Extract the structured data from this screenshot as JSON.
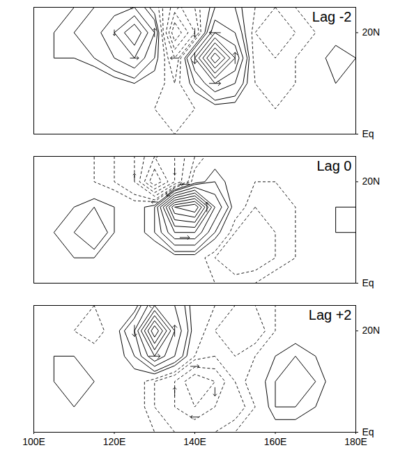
{
  "chart_data": [
    {
      "type": "contour",
      "title": "Lag -2",
      "x": [
        100,
        105,
        110,
        115,
        120,
        125,
        130,
        135,
        140,
        145,
        150,
        155,
        160,
        165,
        170,
        175,
        180
      ],
      "y": [
        0,
        5,
        10,
        15,
        20,
        25
      ],
      "values": [
        [
          0,
          0,
          0,
          0,
          0,
          0,
          0,
          -0.5,
          -0.5,
          0,
          0,
          0,
          0,
          0,
          0,
          0,
          0
        ],
        [
          0,
          0,
          -0.5,
          -0.5,
          -0.5,
          0,
          -0.5,
          -1,
          -0.5,
          0,
          0,
          -0.5,
          -0.5,
          -0.5,
          -0.5,
          0,
          0
        ],
        [
          0,
          0,
          -0.5,
          -0.5,
          0,
          0.5,
          0,
          -1,
          1,
          3,
          2,
          -0.5,
          -1,
          -0.5,
          0,
          0.5,
          0
        ],
        [
          0,
          0.5,
          0.5,
          1,
          2,
          3,
          1,
          -2,
          3,
          8,
          4,
          -1,
          -1,
          -0.5,
          0,
          1,
          0.5
        ],
        [
          0,
          0.5,
          1,
          1.5,
          3,
          5,
          2,
          -5,
          -2,
          3,
          2,
          -1,
          -1.5,
          -1,
          -0.5,
          0,
          0
        ],
        [
          0,
          0,
          0.5,
          1,
          1.5,
          2,
          0,
          -2.5,
          -1,
          1,
          1,
          -0.5,
          -1,
          -0.5,
          0,
          0,
          0
        ]
      ],
      "contour_levels": [
        -6,
        -5,
        -4,
        -3,
        -2,
        -1,
        -0.5,
        0.5,
        1,
        2,
        3,
        4,
        5,
        6,
        7,
        8,
        9,
        10
      ],
      "winds": [
        [
          145,
          10,
          2,
          0
        ],
        [
          150,
          15,
          0,
          2
        ],
        [
          145,
          20,
          -2,
          0
        ],
        [
          140,
          15,
          0,
          -2
        ],
        [
          135,
          25,
          1.5,
          0
        ],
        [
          140,
          20,
          0,
          -1.5
        ],
        [
          135,
          15,
          -1.5,
          0
        ],
        [
          130,
          20,
          0,
          1.5
        ],
        [
          125,
          15,
          1.5,
          0
        ],
        [
          125,
          25,
          -1.5,
          0
        ],
        [
          120,
          20,
          0,
          -1
        ]
      ],
      "xlim": [
        100,
        180
      ],
      "xticks": [
        {
          "value": 100,
          "label": "100E"
        },
        {
          "value": 120,
          "label": "120E"
        },
        {
          "value": 140,
          "label": "140E"
        },
        {
          "value": 160,
          "label": "160E"
        },
        {
          "value": 180,
          "label": "180E"
        }
      ],
      "ylim": [
        0,
        25
      ],
      "yticks": [
        {
          "value": 0,
          "label": "Eq"
        },
        {
          "value": 20,
          "label": "20N"
        }
      ],
      "tick_labels": "y"
    },
    {
      "type": "contour",
      "title": "Lag 0",
      "x": [
        100,
        105,
        110,
        115,
        120,
        125,
        130,
        135,
        140,
        145,
        150,
        155,
        160,
        165,
        170,
        175,
        180
      ],
      "y": [
        0,
        5,
        10,
        15,
        20,
        25
      ],
      "values": [
        [
          0,
          0,
          0,
          0,
          0,
          0,
          0,
          0,
          0,
          -0.5,
          -0.5,
          -0.5,
          0,
          0,
          0,
          0,
          0
        ],
        [
          0,
          0,
          0.5,
          0.5,
          0,
          0,
          -0.5,
          0,
          0,
          -1,
          -2,
          -1.5,
          -1,
          -0.5,
          0,
          0,
          0
        ],
        [
          0,
          0.5,
          1,
          2,
          0.5,
          0,
          1,
          4,
          4,
          1,
          -1,
          -1.5,
          -1,
          -0.5,
          0,
          0.5,
          0.5
        ],
        [
          0,
          0,
          0.5,
          1,
          0.5,
          0,
          1,
          8,
          9,
          3,
          0,
          -1,
          -1,
          -0.5,
          0,
          0.5,
          0.5
        ],
        [
          0,
          0,
          0,
          -0.5,
          -1,
          -2,
          -6,
          -3,
          0,
          1,
          0,
          -0.5,
          -0.5,
          -0.5,
          0,
          0,
          0
        ],
        [
          0,
          0,
          -0.5,
          -0.5,
          -1,
          -2,
          -4,
          -3,
          -1,
          0,
          0,
          0,
          -0.5,
          -0.5,
          0,
          0,
          0
        ]
      ],
      "contour_levels": [
        -6,
        -5,
        -4,
        -3,
        -2,
        -1,
        -0.5,
        0.5,
        1,
        2,
        3,
        4,
        5,
        6,
        7,
        8,
        9,
        10
      ],
      "winds": [
        [
          137.5,
          9,
          3,
          0
        ],
        [
          143,
          15,
          0,
          3
        ],
        [
          137.5,
          19.5,
          -3,
          0
        ],
        [
          134,
          18,
          -2.5,
          -2.5
        ],
        [
          130,
          16,
          -2,
          0
        ],
        [
          125,
          21,
          0,
          2
        ],
        [
          135,
          22,
          0,
          -2
        ],
        [
          130,
          25,
          2,
          0
        ]
      ],
      "xlim": [
        100,
        180
      ],
      "xticks": [
        {
          "value": 100,
          "label": "100E"
        },
        {
          "value": 120,
          "label": "120E"
        },
        {
          "value": 140,
          "label": "140E"
        },
        {
          "value": 160,
          "label": "160E"
        },
        {
          "value": 180,
          "label": "180E"
        }
      ],
      "ylim": [
        0,
        25
      ],
      "yticks": [
        {
          "value": 0,
          "label": "Eq"
        },
        {
          "value": 20,
          "label": "20N"
        }
      ],
      "tick_labels": "y"
    },
    {
      "type": "contour",
      "title": "Lag +2",
      "x": [
        100,
        105,
        110,
        115,
        120,
        125,
        130,
        135,
        140,
        145,
        150,
        155,
        160,
        165,
        170,
        175,
        180
      ],
      "y": [
        0,
        5,
        10,
        15,
        20,
        25
      ],
      "values": [
        [
          0,
          0,
          0,
          0,
          0,
          0,
          -0.5,
          -1,
          -1,
          -1,
          -0.5,
          0,
          0,
          0,
          0,
          0,
          0
        ],
        [
          0,
          0,
          0.5,
          0,
          0,
          0,
          -1,
          -2,
          -3,
          -2,
          -1.5,
          -0.5,
          1,
          1,
          0.5,
          0,
          0
        ],
        [
          0,
          0.5,
          1,
          0.5,
          0,
          0,
          -1,
          -2,
          -4,
          -3,
          -1,
          0,
          1,
          1.5,
          1,
          0,
          0
        ],
        [
          0,
          0.5,
          0.5,
          0,
          0,
          1,
          4,
          2,
          -0.5,
          -1,
          -1,
          -0.5,
          0.5,
          1,
          0.5,
          0,
          0
        ],
        [
          0,
          0,
          -0.5,
          -1,
          0,
          2,
          8,
          3,
          0,
          -1,
          -2,
          -1.5,
          -0.5,
          0,
          0,
          0,
          0
        ],
        [
          0,
          0,
          0,
          -0.5,
          -0.5,
          0,
          3,
          2,
          0,
          -0.5,
          -1,
          -1,
          -0.5,
          0,
          0,
          0,
          0
        ]
      ],
      "contour_levels": [
        -6,
        -5,
        -4,
        -3,
        -2,
        -1,
        -0.5,
        0.5,
        1,
        2,
        3,
        4,
        5,
        6,
        7,
        8,
        9,
        10
      ],
      "winds": [
        [
          130,
          15,
          2,
          0
        ],
        [
          135,
          20,
          0,
          2
        ],
        [
          130,
          25,
          -2,
          0
        ],
        [
          125,
          20,
          0,
          -2
        ],
        [
          140,
          13,
          1.5,
          0
        ],
        [
          145,
          8,
          0,
          -1.5
        ],
        [
          140,
          3,
          -1.5,
          0
        ],
        [
          135,
          8,
          0,
          1.5
        ]
      ],
      "xlim": [
        100,
        180
      ],
      "xticks": [
        {
          "value": 100,
          "label": "100E"
        },
        {
          "value": 120,
          "label": "120E"
        },
        {
          "value": 140,
          "label": "140E"
        },
        {
          "value": 160,
          "label": "160E"
        },
        {
          "value": 180,
          "label": "180E"
        }
      ],
      "ylim": [
        0,
        25
      ],
      "yticks": [
        {
          "value": 0,
          "label": "Eq"
        },
        {
          "value": 20,
          "label": "20N"
        }
      ]
    }
  ]
}
